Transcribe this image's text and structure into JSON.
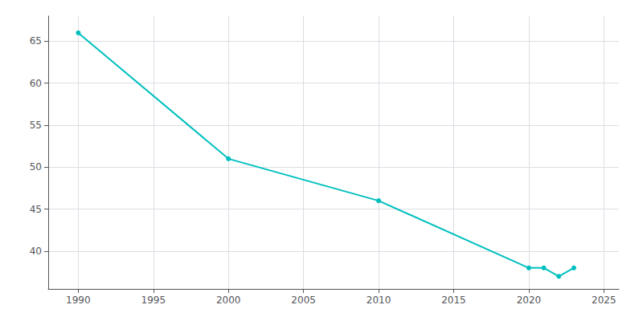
{
  "chart_data": {
    "type": "line",
    "x": [
      1990,
      2000,
      2010,
      2020,
      2021,
      2022,
      2023
    ],
    "values": [
      66,
      51,
      46,
      38,
      38,
      37,
      38
    ],
    "color": "#00BFBF",
    "marker": "circle",
    "xlim": [
      1988,
      2026
    ],
    "ylim": [
      35.5,
      68
    ],
    "xticks": [
      1990,
      1995,
      2000,
      2005,
      2010,
      2015,
      2020,
      2025
    ],
    "yticks": [
      40,
      45,
      50,
      55,
      60,
      65
    ],
    "grid": true
  }
}
